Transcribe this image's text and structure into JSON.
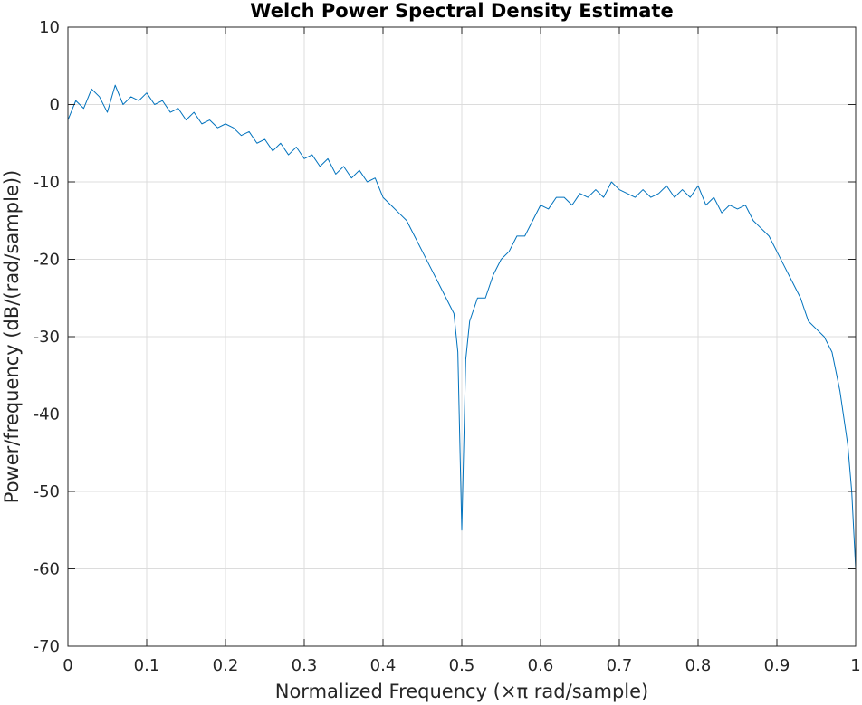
{
  "chart_data": {
    "type": "line",
    "title": "Welch Power Spectral Density Estimate",
    "xlabel": "Normalized Frequency  (×π rad/sample)",
    "ylabel": "Power/frequency (dB/(rad/sample))",
    "xlim": [
      0,
      1
    ],
    "ylim": [
      -70,
      10
    ],
    "xticks": [
      0,
      0.1,
      0.2,
      0.3,
      0.4,
      0.5,
      0.6,
      0.7,
      0.8,
      0.9,
      1
    ],
    "xtick_labels": [
      "0",
      "0.1",
      "0.2",
      "0.3",
      "0.4",
      "0.5",
      "0.6",
      "0.7",
      "0.8",
      "0.9",
      "1"
    ],
    "yticks": [
      10,
      0,
      -10,
      -20,
      -30,
      -40,
      -50,
      -60,
      -70
    ],
    "ytick_labels": [
      "10",
      "0",
      "-10",
      "-20",
      "-30",
      "-40",
      "-50",
      "-60",
      "-70"
    ],
    "grid": true,
    "line_color": "#0072BD",
    "series": [
      {
        "x": [
          0,
          0.01,
          0.02,
          0.03,
          0.04,
          0.05,
          0.06,
          0.07,
          0.08,
          0.09,
          0.1,
          0.11,
          0.12,
          0.13,
          0.14,
          0.15,
          0.16,
          0.17,
          0.18,
          0.19,
          0.2,
          0.21,
          0.22,
          0.23,
          0.24,
          0.25,
          0.26,
          0.27,
          0.28,
          0.29,
          0.3,
          0.31,
          0.32,
          0.33,
          0.34,
          0.35,
          0.36,
          0.37,
          0.38,
          0.39,
          0.4,
          0.41,
          0.42,
          0.43,
          0.44,
          0.45,
          0.46,
          0.47,
          0.48,
          0.49,
          0.495,
          0.5,
          0.505,
          0.51,
          0.52,
          0.53,
          0.54,
          0.55,
          0.56,
          0.57,
          0.58,
          0.59,
          0.6,
          0.61,
          0.62,
          0.63,
          0.64,
          0.65,
          0.66,
          0.67,
          0.68,
          0.69,
          0.7,
          0.71,
          0.72,
          0.73,
          0.74,
          0.75,
          0.76,
          0.77,
          0.78,
          0.79,
          0.8,
          0.81,
          0.82,
          0.83,
          0.84,
          0.85,
          0.86,
          0.87,
          0.88,
          0.89,
          0.9,
          0.91,
          0.92,
          0.93,
          0.94,
          0.95,
          0.96,
          0.97,
          0.98,
          0.99,
          0.995,
          1
        ],
        "y": [
          -2,
          0.5,
          -0.5,
          2,
          1,
          -1,
          2.5,
          0,
          1,
          0.5,
          1.5,
          0,
          0.5,
          -1,
          -0.5,
          -2,
          -1,
          -2.5,
          -2,
          -3,
          -2.5,
          -3,
          -4,
          -3.5,
          -5,
          -4.5,
          -6,
          -5,
          -6.5,
          -5.5,
          -7,
          -6.5,
          -8,
          -7,
          -9,
          -8,
          -9.5,
          -8.5,
          -10,
          -9.5,
          -12,
          -13,
          -14,
          -15,
          -17,
          -19,
          -21,
          -23,
          -25,
          -27,
          -32,
          -55,
          -33,
          -28,
          -25,
          -25,
          -22,
          -20,
          -19,
          -17,
          -17,
          -15,
          -13,
          -13.5,
          -12,
          -12,
          -13,
          -11.5,
          -12,
          -11,
          -12,
          -10,
          -11,
          -11.5,
          -12,
          -11,
          -12,
          -11.5,
          -10.5,
          -12,
          -11,
          -12,
          -10.5,
          -13,
          -12,
          -14,
          -13,
          -13.5,
          -13,
          -15,
          -16,
          -17,
          -19,
          -21,
          -23,
          -25,
          -28,
          -29,
          -30,
          -32,
          -37,
          -44,
          -50,
          -60
        ]
      }
    ]
  }
}
